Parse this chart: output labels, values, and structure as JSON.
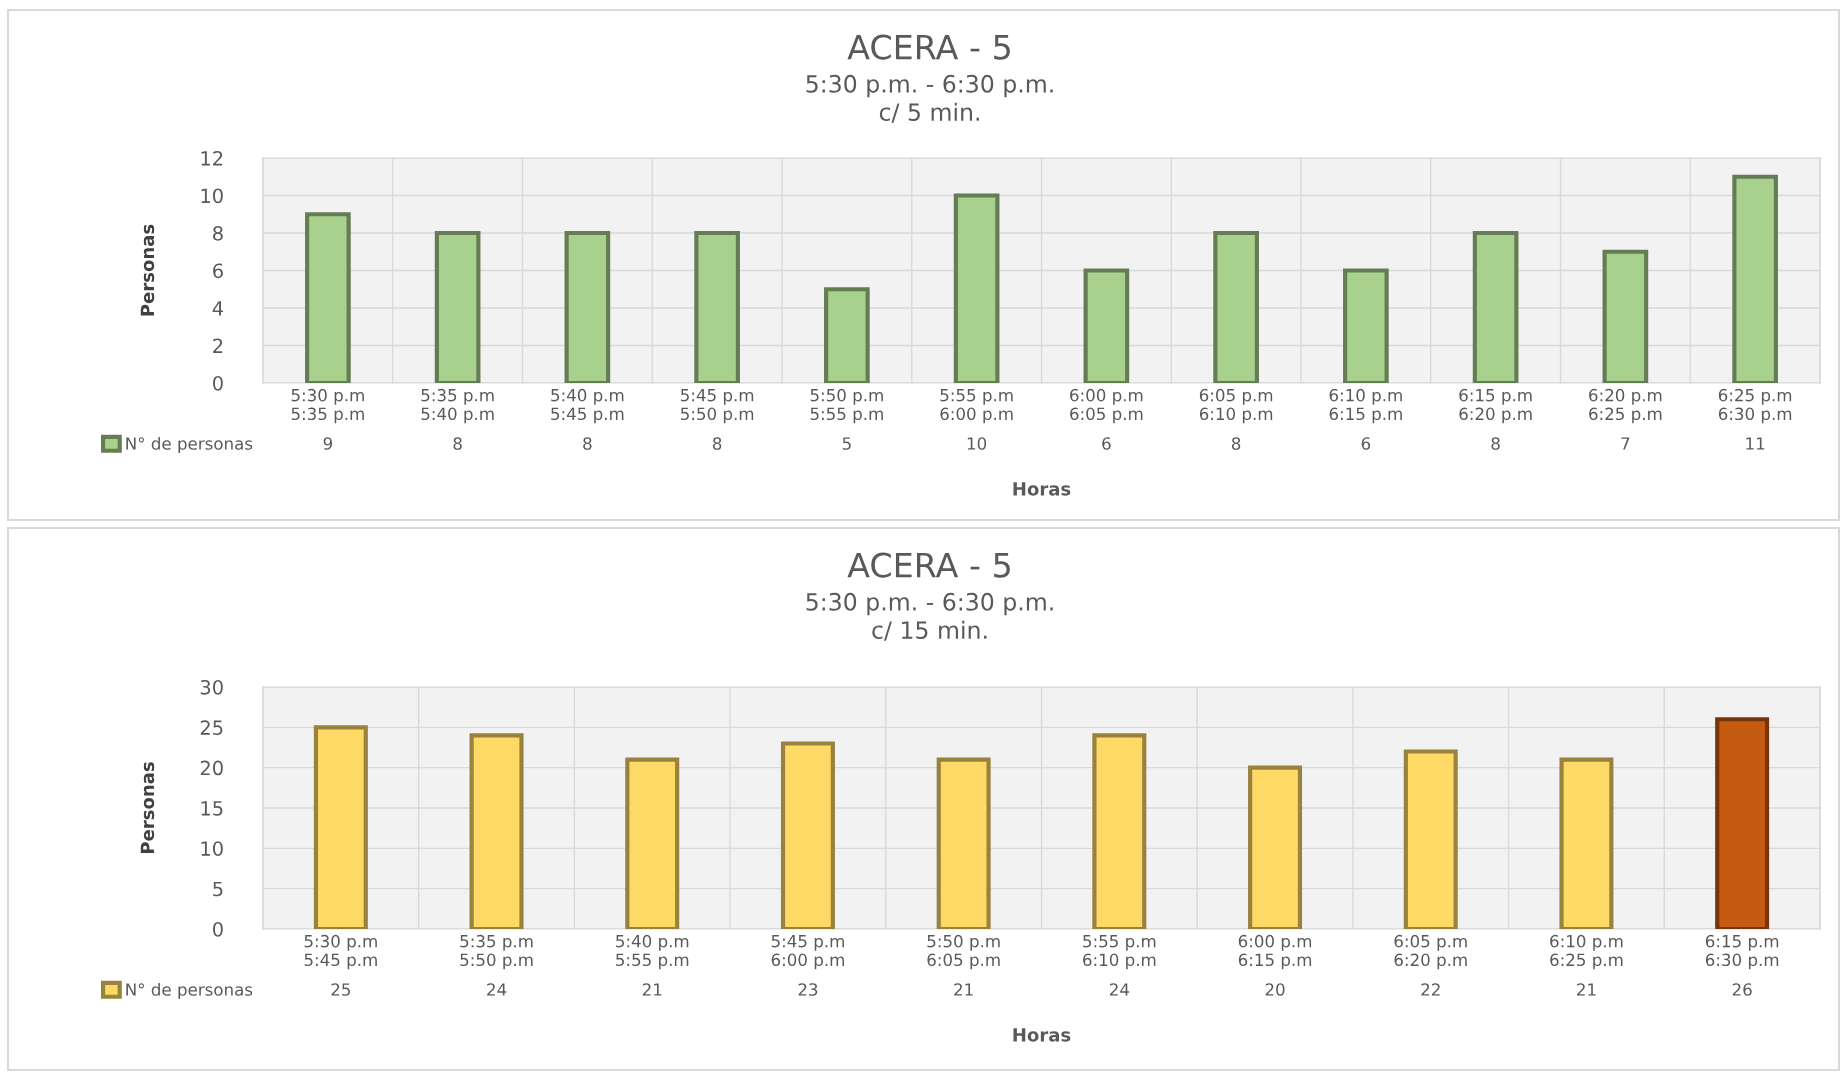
{
  "chart_data": [
    {
      "type": "bar",
      "title": "ACERA - 5",
      "subtitle": "5:30 p.m. - 6:30 p.m.\nc/ 5 min.",
      "xlabel": "Horas",
      "ylabel": "Personas",
      "categories": [
        "5:30 p.m\n5:35 p.m",
        "5:35 p.m\n5:40 p.m",
        "5:40 p.m\n5:45 p.m",
        "5:45 p.m\n5:50 p.m",
        "5:50 p.m\n5:55 p.m",
        "5:55 p.m\n6:00 p.m",
        "6:00 p.m\n6:05 p.m",
        "6:05 p.m\n6:10 p.m",
        "6:10 p.m\n6:15 p.m",
        "6:15 p.m\n6:20 p.m",
        "6:20 p.m\n6:25 p.m",
        "6:25 p.m\n6:30 p.m"
      ],
      "series": [
        {
          "name": "N° de personas",
          "color": "#a9d18e",
          "values": [
            9,
            8,
            8,
            8,
            5,
            10,
            6,
            8,
            6,
            8,
            7,
            11
          ]
        }
      ],
      "ylim": [
        0,
        12
      ],
      "yticks": [
        0,
        2,
        4,
        6,
        8,
        10,
        12
      ],
      "grid": "y",
      "legend": "bottom left",
      "data_labels": true
    },
    {
      "type": "bar",
      "title": "ACERA - 5",
      "subtitle": "5:30 p.m. - 6:30 p.m.\nc/ 15 min.",
      "xlabel": "Horas",
      "ylabel": "Personas",
      "categories": [
        "5:30 p.m\n5:45 p.m",
        "5:35 p.m\n5:50 p.m",
        "5:40 p.m\n5:55 p.m",
        "5:45 p.m\n6:00 p.m",
        "5:50 p.m\n6:05 p.m",
        "5:55 p.m\n6:10 p.m",
        "6:00 p.m\n6:15 p.m",
        "6:05 p.m\n6:20 p.m",
        "6:10 p.m\n6:25 p.m",
        "6:15 p.m\n6:30 p.m"
      ],
      "series": [
        {
          "name": "N° de personas",
          "color": "#ffd966",
          "colors": [
            "#ffd966",
            "#ffd966",
            "#ffd966",
            "#ffd966",
            "#ffd966",
            "#ffd966",
            "#ffd966",
            "#ffd966",
            "#ffd966",
            "#c55a11"
          ],
          "values": [
            25,
            24,
            21,
            23,
            21,
            24,
            20,
            22,
            21,
            26
          ]
        }
      ],
      "ylim": [
        0,
        30
      ],
      "yticks": [
        0,
        5,
        10,
        15,
        20,
        25,
        30
      ],
      "grid": "y",
      "legend": "bottom left",
      "data_labels": true
    }
  ]
}
